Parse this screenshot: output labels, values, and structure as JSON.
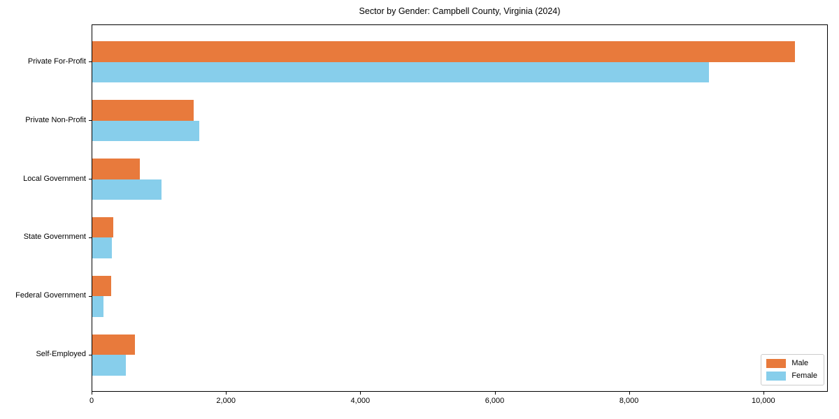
{
  "chart_data": {
    "type": "bar",
    "orientation": "horizontal",
    "title": "Sector by Gender: Campbell County, Virginia (2024)",
    "categories": [
      "Private For-Profit",
      "Private Non-Profit",
      "Local Government",
      "State Government",
      "Federal Government",
      "Self-Employed"
    ],
    "series": [
      {
        "name": "Male",
        "color": "#e87a3c",
        "values": [
          10455,
          1505,
          705,
          315,
          280,
          635
        ]
      },
      {
        "name": "Female",
        "color": "#87ceeb",
        "values": [
          9180,
          1595,
          1030,
          295,
          165,
          500
        ]
      }
    ],
    "xlim": [
      0,
      10960
    ],
    "xticks": [
      0,
      2000,
      4000,
      6000,
      8000,
      10000
    ],
    "xtick_labels": [
      "0",
      "2,000",
      "4,000",
      "6,000",
      "8,000",
      "10,000"
    ],
    "xlabel": "",
    "ylabel": "",
    "grid": false,
    "legend": {
      "position": "lower right"
    }
  }
}
